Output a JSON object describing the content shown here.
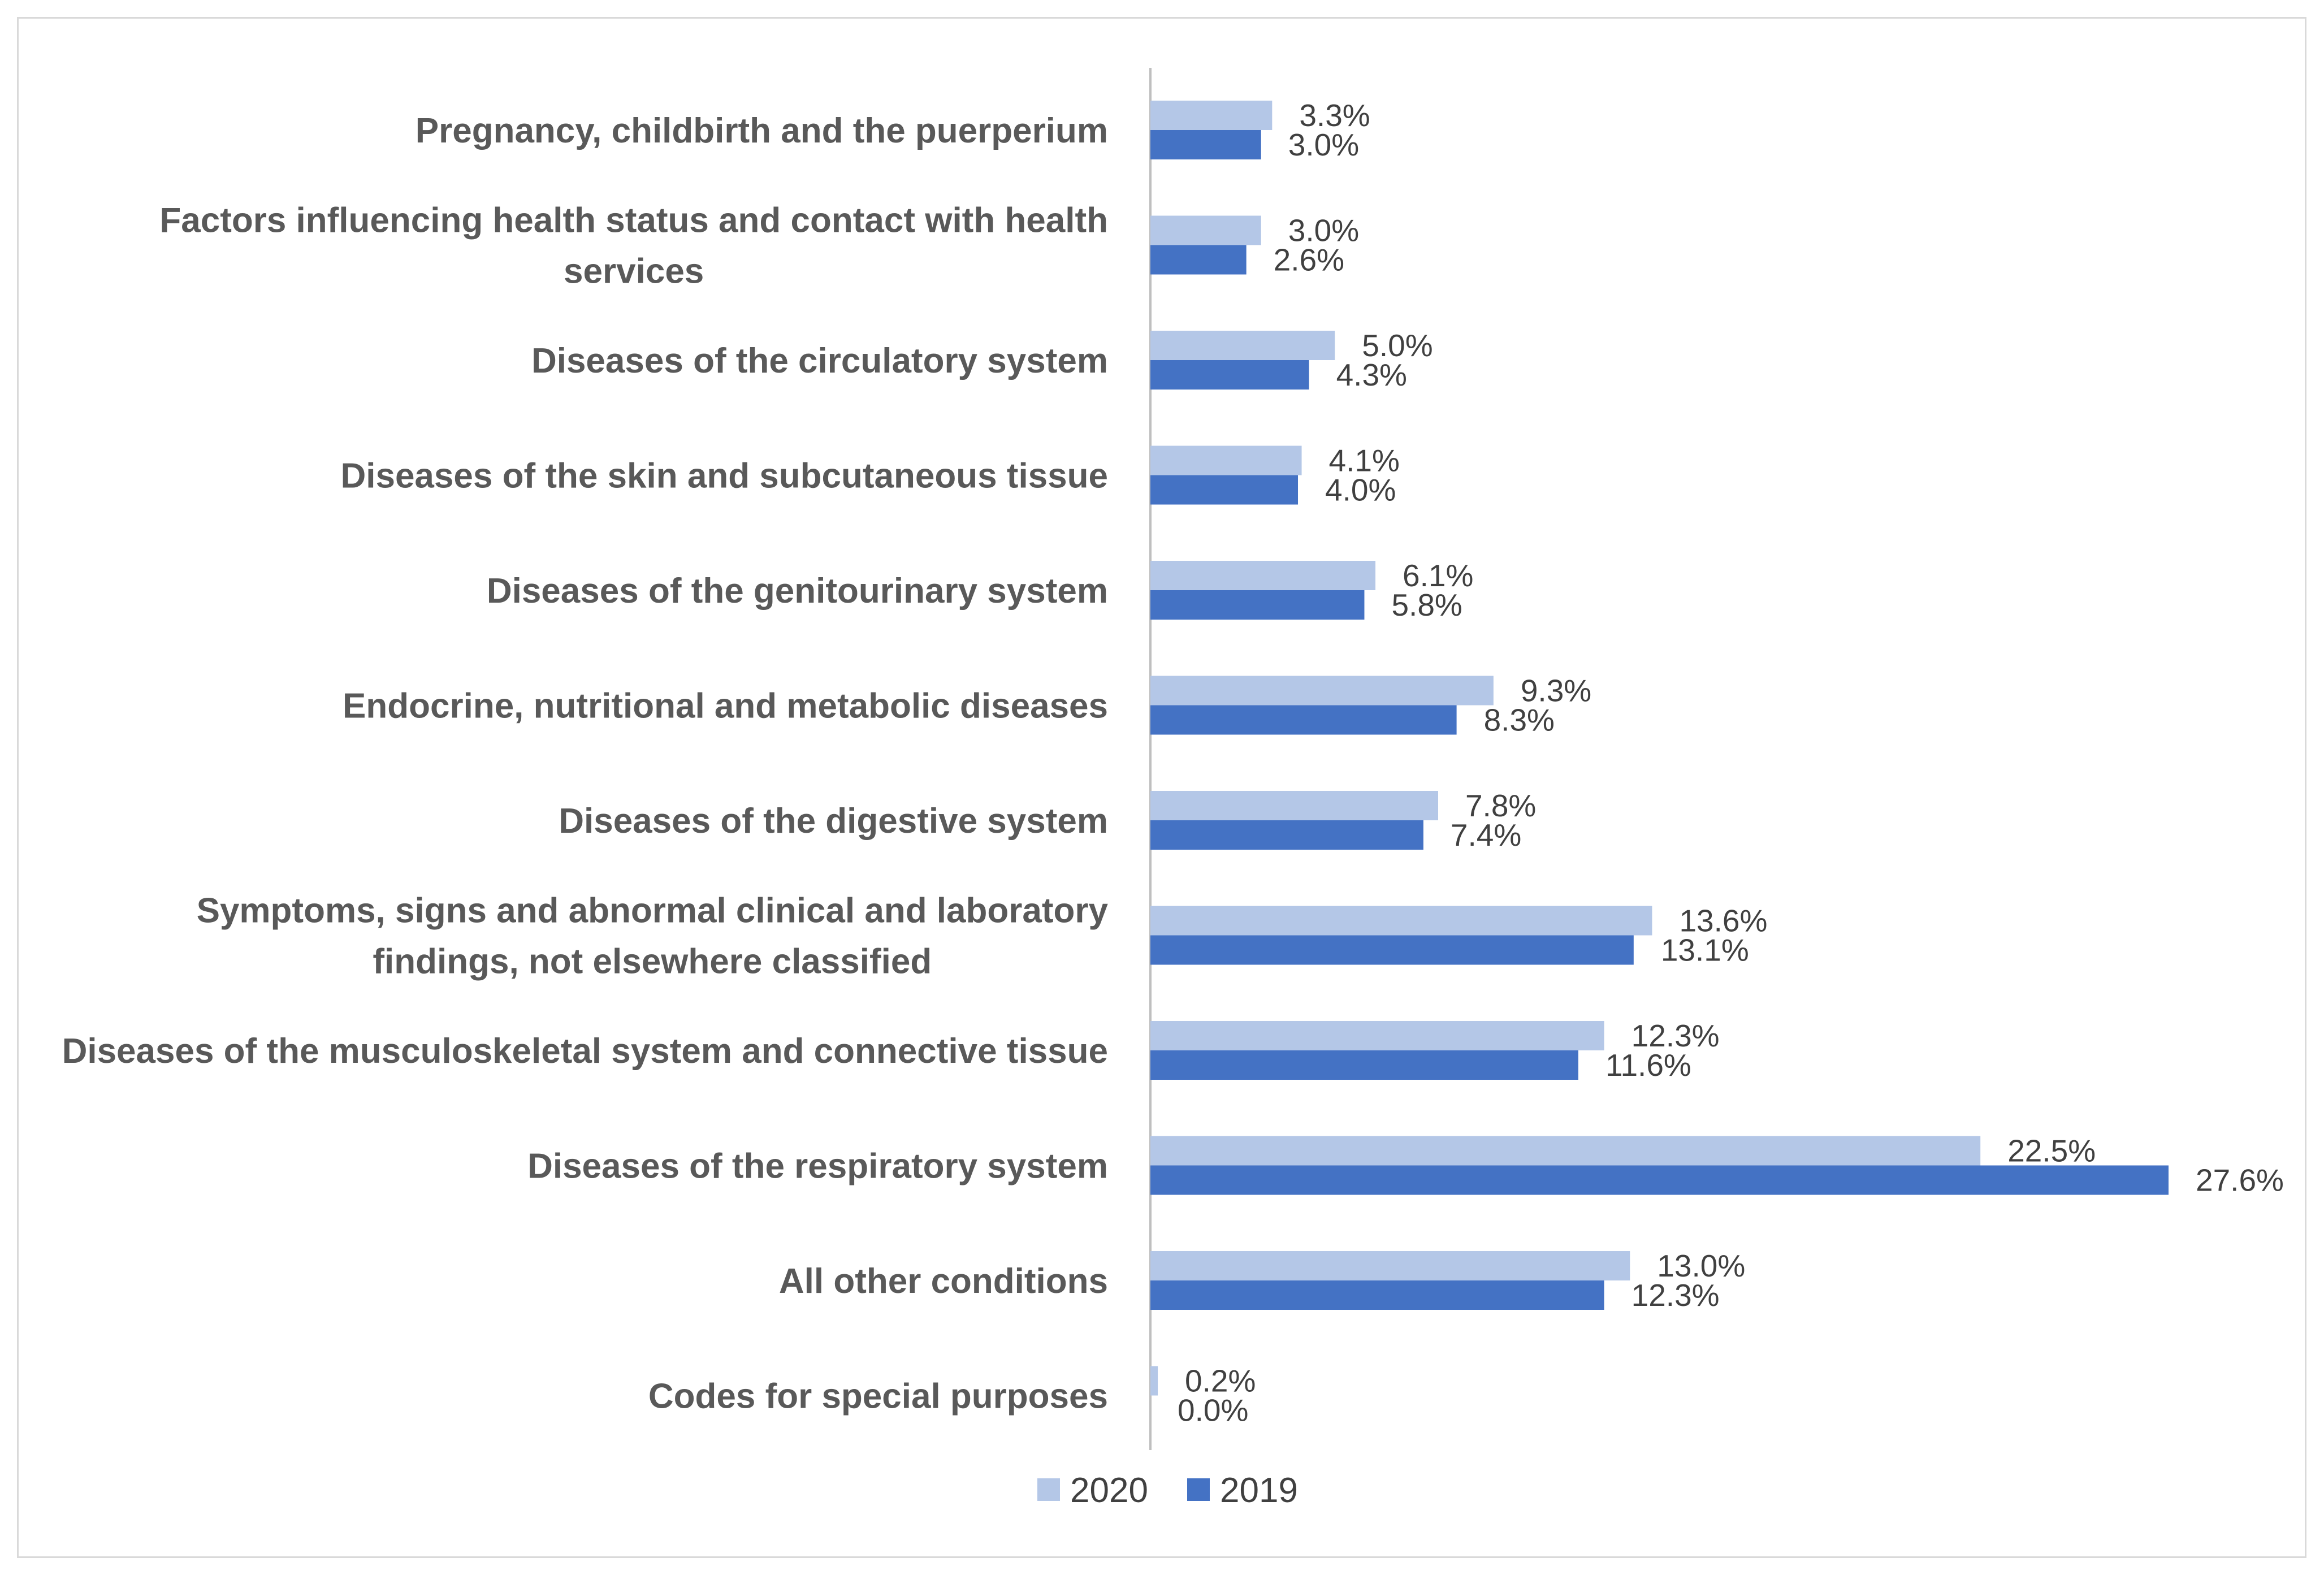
{
  "chart_data": {
    "type": "bar",
    "orientation": "horizontal",
    "title": "",
    "xlabel": "",
    "ylabel": "",
    "xlim": [
      0,
      30
    ],
    "grid": false,
    "legend_position": "bottom",
    "value_suffix": "%",
    "categories": [
      "Pregnancy, childbirth and the puerperium",
      "Factors influencing health status and contact with health services",
      "Diseases of the circulatory system",
      "Diseases of the skin and subcutaneous tissue",
      "Diseases of the genitourinary system",
      "Endocrine, nutritional and metabolic diseases",
      "Diseases of the digestive system",
      "Symptoms, signs and abnormal clinical and laboratory findings, not elsewhere classified",
      "Diseases of the musculoskeletal system and connective tissue",
      "Diseases of the respiratory system",
      "All other conditions",
      "Codes for special purposes"
    ],
    "category_lines": [
      [
        "Pregnancy, childbirth and the puerperium"
      ],
      [
        "Factors influencing health status and contact with health",
        "services"
      ],
      [
        "Diseases of the circulatory system"
      ],
      [
        "Diseases of the skin and subcutaneous tissue"
      ],
      [
        "Diseases of the genitourinary system"
      ],
      [
        "Endocrine, nutritional and metabolic diseases"
      ],
      [
        "Diseases of the digestive system"
      ],
      [
        "Symptoms, signs and abnormal clinical and laboratory",
        "findings, not elsewhere classified"
      ],
      [
        "Diseases of the musculoskeletal system and connective tissue"
      ],
      [
        "Diseases of the respiratory system"
      ],
      [
        "All other conditions"
      ],
      [
        "Codes for special purposes"
      ]
    ],
    "series": [
      {
        "name": "2020",
        "color": "#b4c7e7",
        "values": [
          3.3,
          3.0,
          5.0,
          4.1,
          6.1,
          9.3,
          7.8,
          13.6,
          12.3,
          22.5,
          13.0,
          0.2
        ],
        "labels": [
          "3.3%",
          "3.0%",
          "5.0%",
          "4.1%",
          "6.1%",
          "9.3%",
          "7.8%",
          "13.6%",
          "12.3%",
          "22.5%",
          "13.0%",
          "0.2%"
        ]
      },
      {
        "name": "2019",
        "color": "#4472c4",
        "values": [
          3.0,
          2.6,
          4.3,
          4.0,
          5.8,
          8.3,
          7.4,
          13.1,
          11.6,
          27.6,
          12.3,
          0.0
        ],
        "labels": [
          "3.0%",
          "2.6%",
          "4.3%",
          "4.0%",
          "5.8%",
          "8.3%",
          "7.4%",
          "13.1%",
          "11.6%",
          "27.6%",
          "12.3%",
          "0.0%"
        ]
      }
    ]
  }
}
